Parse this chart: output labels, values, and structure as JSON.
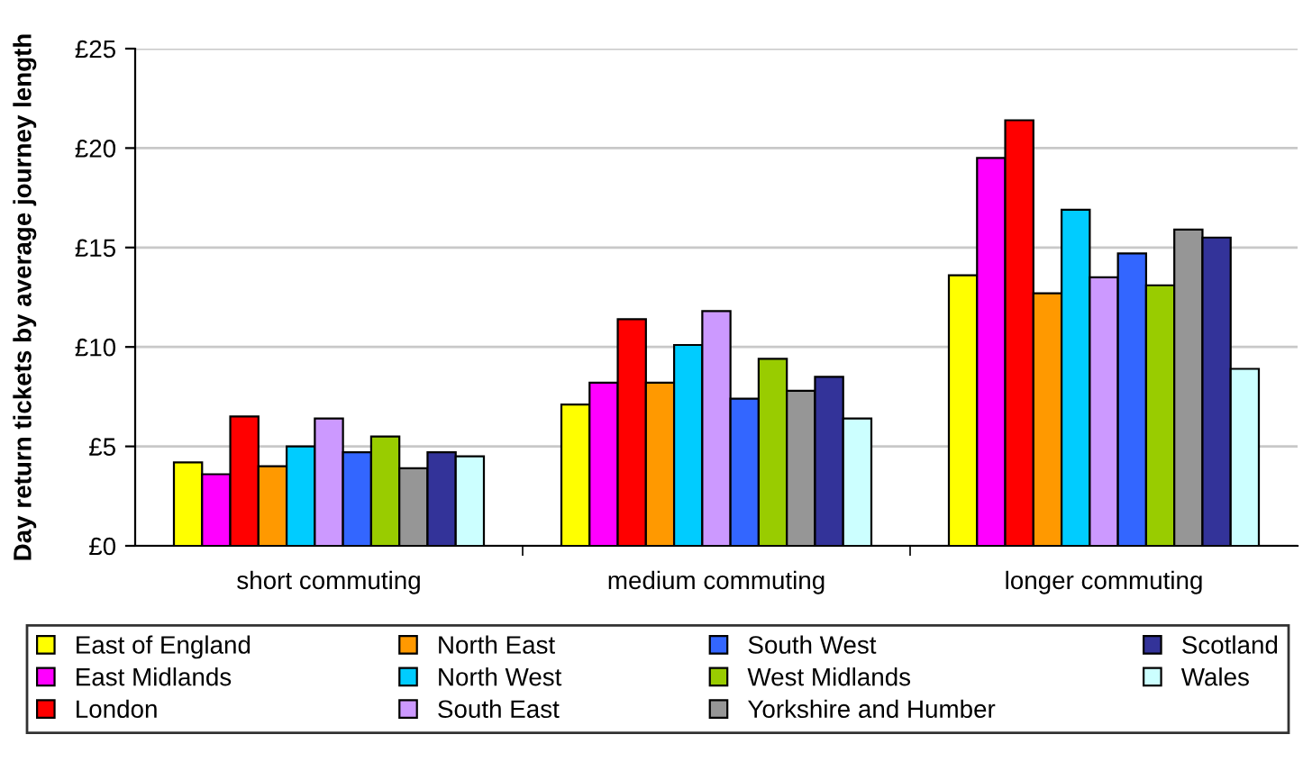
{
  "chart_data": {
    "type": "bar",
    "ylabel": "Day return tickets by average journey length",
    "categories": [
      "short commuting",
      "medium commuting",
      "longer commuting"
    ],
    "series": [
      {
        "name": "East of England",
        "color": "#ffff00",
        "values": [
          4.2,
          7.1,
          13.6
        ]
      },
      {
        "name": "East Midlands",
        "color": "#ff00ff",
        "values": [
          3.6,
          8.2,
          19.5
        ]
      },
      {
        "name": "London",
        "color": "#ff0000",
        "values": [
          6.5,
          11.4,
          21.4
        ]
      },
      {
        "name": "North East",
        "color": "#ff9900",
        "values": [
          4.0,
          8.2,
          12.7
        ]
      },
      {
        "name": "North West",
        "color": "#00ccff",
        "values": [
          5.0,
          10.1,
          16.9
        ]
      },
      {
        "name": "South East",
        "color": "#cc99ff",
        "values": [
          6.4,
          11.8,
          13.5
        ]
      },
      {
        "name": "South West",
        "color": "#3366ff",
        "values": [
          4.7,
          7.4,
          14.7
        ]
      },
      {
        "name": "West Midlands",
        "color": "#99cc00",
        "values": [
          5.5,
          9.4,
          13.1
        ]
      },
      {
        "name": "Yorkshire and Humber",
        "color": "#969696",
        "values": [
          3.9,
          7.8,
          15.9
        ]
      },
      {
        "name": "Scotland",
        "color": "#333399",
        "values": [
          4.7,
          8.5,
          15.5
        ]
      },
      {
        "name": "Wales",
        "color": "#ccffff",
        "values": [
          4.5,
          6.4,
          8.9
        ]
      }
    ],
    "ylim": [
      0,
      25
    ],
    "yticks": [
      {
        "value": 0,
        "label": "£0"
      },
      {
        "value": 5,
        "label": "£5"
      },
      {
        "value": 10,
        "label": "£10"
      },
      {
        "value": 15,
        "label": "£15"
      },
      {
        "value": 20,
        "label": "£20"
      },
      {
        "value": 25,
        "label": "£25"
      }
    ],
    "grid": "y",
    "legend": "bottom"
  }
}
